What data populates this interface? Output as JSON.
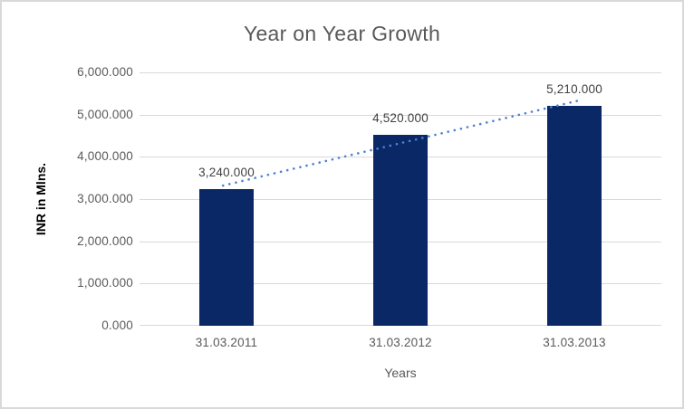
{
  "chart_data": {
    "type": "bar",
    "title": "Year on Year Growth",
    "xlabel": "Years",
    "ylabel": "INR in Mlns.",
    "categories": [
      "31.03.2011",
      "31.03.2012",
      "31.03.2013"
    ],
    "values": [
      3240,
      4520,
      5210
    ],
    "data_labels": [
      "3,240.000",
      "4,520.000",
      "5,210.000"
    ],
    "ylim": [
      0,
      6000
    ],
    "ytick_interval": 1000,
    "ytick_labels": [
      "0.000",
      "1,000.000",
      "2,000.000",
      "3,000.000",
      "4,000.000",
      "5,000.000",
      "6,000.000"
    ],
    "grid": "horizontal",
    "legend": "none",
    "trendline": {
      "type": "linear",
      "style": "dotted"
    },
    "colors": {
      "bar": "#0A2866",
      "trendline": "#4E80D3",
      "gridline": "#D9D9D9",
      "title_text": "#595959",
      "tick_text": "#595959",
      "data_label_text": "#404040",
      "y_axis_title_text": "#000000",
      "x_axis_title_text": "#595959",
      "border": "#D9D9D9",
      "background": "#FFFFFF"
    }
  }
}
